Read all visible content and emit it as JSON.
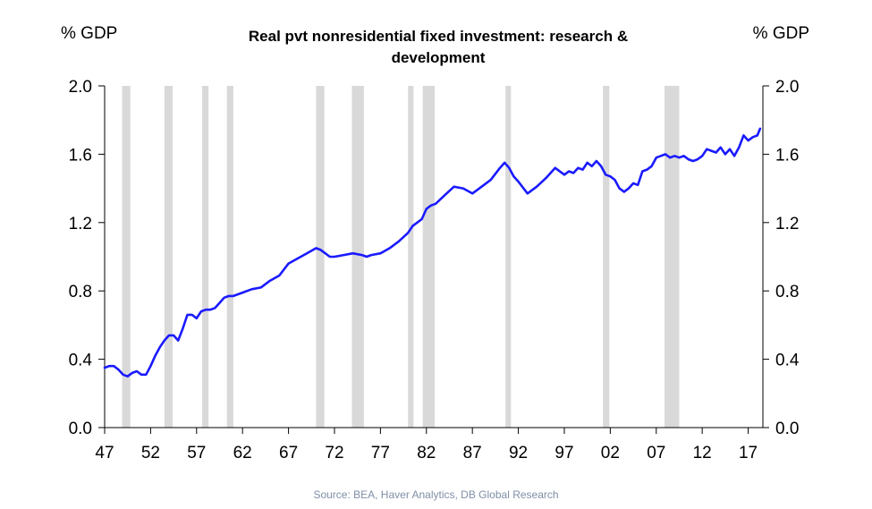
{
  "chart_data": {
    "type": "line",
    "title": "Real pvt nonresidential fixed investment: research & development",
    "title_lines": [
      "Real pvt nonresidential fixed investment: research &",
      "development"
    ],
    "ylabel_left": "% GDP",
    "ylabel_right": "% GDP",
    "source": "Source: BEA, Haver Analytics, DB Global Research",
    "xlim": [
      1947,
      2018.6
    ],
    "ylim": [
      0,
      2.0
    ],
    "x_ticks": [
      1947,
      1952,
      1957,
      1962,
      1967,
      1972,
      1977,
      1982,
      1987,
      1992,
      1997,
      2002,
      2007,
      2012,
      2017
    ],
    "x_tick_labels": [
      "47",
      "52",
      "57",
      "62",
      "67",
      "72",
      "77",
      "82",
      "87",
      "92",
      "97",
      "02",
      "07",
      "12",
      "17"
    ],
    "y_ticks": [
      0,
      0.4,
      0.8,
      1.2,
      1.6,
      2.0
    ],
    "y_tick_labels": [
      "0.0",
      "0.4",
      "0.8",
      "1.2",
      "1.6",
      "2.0"
    ],
    "grid": false,
    "line_color": "#1a1aff",
    "recession_color": "#d9d9d9",
    "recessions": [
      [
        1948.9,
        1949.8
      ],
      [
        1953.5,
        1954.4
      ],
      [
        1957.6,
        1958.3
      ],
      [
        1960.3,
        1961.0
      ],
      [
        1970.0,
        1970.9
      ],
      [
        1973.9,
        1975.2
      ],
      [
        1980.0,
        1980.6
      ],
      [
        1981.6,
        1982.9
      ],
      [
        1990.6,
        1991.2
      ],
      [
        2001.2,
        2001.9
      ],
      [
        2007.9,
        2009.5
      ]
    ],
    "series": [
      {
        "x": [
          1947.0,
          1947.5,
          1948.0,
          1948.5,
          1949.0,
          1949.5,
          1950.0,
          1950.5,
          1951.0,
          1951.5,
          1952.0,
          1952.5,
          1953.0,
          1953.5,
          1954.0,
          1954.5,
          1955.0,
          1955.5,
          1956.0,
          1956.5,
          1957.0,
          1957.5,
          1958.0,
          1958.5,
          1959.0,
          1959.5,
          1960.0,
          1960.5,
          1961.0,
          1962.0,
          1963.0,
          1964.0,
          1965.0,
          1966.0,
          1967.0,
          1968.0,
          1969.0,
          1970.0,
          1970.5,
          1971.0,
          1971.5,
          1972.0,
          1973.0,
          1974.0,
          1975.0,
          1975.5,
          1976.0,
          1977.0,
          1978.0,
          1979.0,
          1980.0,
          1980.5,
          1981.0,
          1981.5,
          1982.0,
          1982.5,
          1983.0,
          1984.0,
          1985.0,
          1986.0,
          1987.0,
          1988.0,
          1989.0,
          1990.0,
          1990.5,
          1991.0,
          1991.5,
          1992.0,
          1993.0,
          1994.0,
          1995.0,
          1996.0,
          1997.0,
          1997.5,
          1998.0,
          1998.5,
          1999.0,
          1999.5,
          2000.0,
          2000.5,
          2001.0,
          2001.5,
          2002.0,
          2002.5,
          2003.0,
          2003.5,
          2004.0,
          2004.5,
          2005.0,
          2005.5,
          2006.0,
          2006.5,
          2007.0,
          2007.5,
          2008.0,
          2008.5,
          2009.0,
          2009.5,
          2010.0,
          2010.5,
          2011.0,
          2011.5,
          2012.0,
          2012.5,
          2013.0,
          2013.5,
          2014.0,
          2014.5,
          2015.0,
          2015.5,
          2016.0,
          2016.5,
          2017.0,
          2017.5,
          2018.0,
          2018.3
        ],
        "values": [
          0.35,
          0.36,
          0.36,
          0.34,
          0.31,
          0.3,
          0.32,
          0.33,
          0.31,
          0.31,
          0.36,
          0.42,
          0.47,
          0.51,
          0.54,
          0.54,
          0.51,
          0.58,
          0.66,
          0.66,
          0.64,
          0.68,
          0.69,
          0.69,
          0.7,
          0.73,
          0.76,
          0.77,
          0.77,
          0.79,
          0.81,
          0.82,
          0.86,
          0.89,
          0.96,
          0.99,
          1.02,
          1.05,
          1.04,
          1.02,
          1.0,
          1.0,
          1.01,
          1.02,
          1.01,
          1.0,
          1.01,
          1.02,
          1.05,
          1.09,
          1.14,
          1.18,
          1.2,
          1.22,
          1.28,
          1.3,
          1.31,
          1.36,
          1.41,
          1.4,
          1.37,
          1.41,
          1.45,
          1.52,
          1.55,
          1.52,
          1.47,
          1.44,
          1.37,
          1.41,
          1.46,
          1.52,
          1.48,
          1.5,
          1.49,
          1.52,
          1.51,
          1.55,
          1.53,
          1.56,
          1.53,
          1.48,
          1.47,
          1.45,
          1.4,
          1.38,
          1.4,
          1.43,
          1.42,
          1.5,
          1.51,
          1.53,
          1.58,
          1.59,
          1.6,
          1.58,
          1.59,
          1.58,
          1.59,
          1.57,
          1.56,
          1.57,
          1.59,
          1.63,
          1.62,
          1.61,
          1.64,
          1.6,
          1.63,
          1.59,
          1.64,
          1.71,
          1.68,
          1.7,
          1.71,
          1.75
        ]
      }
    ]
  }
}
